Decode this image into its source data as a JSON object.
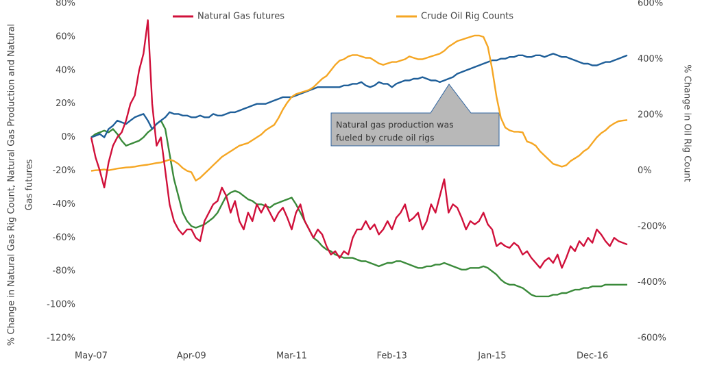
{
  "chart_data": {
    "type": "line",
    "ylabel": [
      "% Change in Natural Gas Rig Count, Natural Gas Production and Natural",
      "Gas futures"
    ],
    "y2label": "% Change in Oil Rig Count",
    "annotation": [
      "Natural gas production was",
      "fueled by crude oil rigs"
    ],
    "categories": [
      "May-07",
      null,
      null,
      null,
      null,
      null,
      null,
      null,
      null,
      null,
      null,
      null,
      null,
      null,
      null,
      null,
      null,
      null,
      null,
      null,
      null,
      null,
      null,
      "Apr-09",
      null,
      null,
      null,
      null,
      null,
      null,
      null,
      null,
      null,
      null,
      null,
      null,
      null,
      null,
      null,
      null,
      null,
      null,
      null,
      null,
      null,
      null,
      "Mar-11",
      null,
      null,
      null,
      null,
      null,
      null,
      null,
      null,
      null,
      null,
      null,
      null,
      null,
      null,
      null,
      null,
      null,
      null,
      null,
      null,
      null,
      null,
      "Feb-13",
      null,
      null,
      null,
      null,
      null,
      null,
      null,
      null,
      null,
      null,
      null,
      null,
      null,
      null,
      null,
      null,
      null,
      null,
      null,
      null,
      null,
      null,
      "Jan-15",
      null,
      null,
      null,
      null,
      null,
      null,
      null,
      null,
      null,
      null,
      null,
      null,
      null,
      null,
      null,
      null,
      null,
      null,
      null,
      null,
      null,
      null,
      "Dec-16",
      null,
      null,
      null,
      null,
      null,
      null,
      null,
      null
    ],
    "series": [
      {
        "name": "Natural Gas futures",
        "color": "#d0103a",
        "values": [
          0,
          -12,
          -20,
          -30,
          -15,
          -5,
          0,
          3,
          10,
          20,
          25,
          40,
          50,
          70,
          20,
          -5,
          0,
          -20,
          -40,
          -50,
          -55,
          -58,
          -55,
          -55,
          -60,
          -62,
          -50,
          -45,
          -40,
          -38,
          -30,
          -35,
          -45,
          -38,
          -50,
          -55,
          -45,
          -50,
          -40,
          -45,
          -40,
          -45,
          -50,
          -45,
          -42,
          -48,
          -55,
          -45,
          -40,
          -50,
          -55,
          -60,
          -55,
          -58,
          -65,
          -70,
          -68,
          -72,
          -68,
          -70,
          -60,
          -55,
          -55,
          -50,
          -55,
          -52,
          -58,
          -55,
          -50,
          -55,
          -48,
          -45,
          -40,
          -50,
          -48,
          -45,
          -55,
          -50,
          -40,
          -45,
          -35,
          -25,
          -45,
          -40,
          -42,
          -48,
          -55,
          -50,
          -52,
          -50,
          -45,
          -52,
          -55,
          -65,
          -63,
          -65,
          -66,
          -63,
          -65,
          -70,
          -68,
          -72,
          -75,
          -78,
          -74,
          -72,
          -75,
          -70,
          -78,
          -72,
          -65,
          -68,
          -62,
          -65,
          -60,
          -63,
          -55,
          -58,
          -62,
          -65,
          -60,
          -62,
          -63,
          -64
        ]
      },
      {
        "name": "Crude Oil Rig Counts",
        "color": "#f5a623",
        "axis": "y2",
        "values": [
          0,
          2,
          3,
          5,
          2,
          5,
          8,
          10,
          12,
          13,
          15,
          18,
          20,
          22,
          25,
          28,
          30,
          35,
          40,
          35,
          25,
          10,
          0,
          -5,
          -35,
          -25,
          -10,
          5,
          20,
          35,
          50,
          60,
          70,
          80,
          90,
          95,
          100,
          110,
          120,
          130,
          145,
          155,
          165,
          190,
          220,
          245,
          265,
          275,
          280,
          285,
          290,
          300,
          315,
          330,
          340,
          360,
          380,
          395,
          400,
          410,
          415,
          415,
          410,
          405,
          405,
          395,
          385,
          380,
          385,
          390,
          390,
          395,
          400,
          410,
          405,
          400,
          400,
          405,
          410,
          415,
          420,
          430,
          445,
          455,
          465,
          470,
          475,
          480,
          485,
          485,
          480,
          445,
          365,
          265,
          190,
          155,
          145,
          140,
          140,
          138,
          105,
          100,
          90,
          70,
          55,
          40,
          25,
          20,
          15,
          20,
          35,
          45,
          55,
          70,
          80,
          100,
          120,
          135,
          145,
          160,
          170,
          178,
          180,
          182
        ]
      },
      {
        "color": "#1f5f99",
        "values": [
          0,
          1,
          2,
          0,
          5,
          7,
          10,
          9,
          8,
          10,
          12,
          13,
          14,
          10,
          5,
          8,
          10,
          12,
          15,
          14,
          14,
          13,
          13,
          12,
          12,
          13,
          12,
          12,
          14,
          13,
          13,
          14,
          15,
          15,
          16,
          17,
          18,
          19,
          20,
          20,
          20,
          21,
          22,
          23,
          24,
          24,
          24,
          25,
          26,
          27,
          28,
          29,
          30,
          30,
          30,
          30,
          30,
          30,
          31,
          31,
          32,
          32,
          33,
          31,
          30,
          31,
          33,
          32,
          32,
          30,
          32,
          33,
          34,
          34,
          35,
          35,
          36,
          35,
          34,
          34,
          33,
          34,
          35,
          36,
          38,
          39,
          40,
          41,
          42,
          43,
          44,
          45,
          46,
          46,
          47,
          47,
          48,
          48,
          49,
          49,
          48,
          48,
          49,
          49,
          48,
          49,
          50,
          49,
          48,
          48,
          47,
          46,
          45,
          44,
          44,
          43,
          43,
          44,
          45,
          45,
          46,
          47,
          48,
          49
        ]
      },
      {
        "color": "#3a8a3a",
        "values": [
          0,
          2,
          3,
          4,
          3,
          5,
          2,
          -2,
          -5,
          -4,
          -3,
          -2,
          0,
          3,
          5,
          8,
          10,
          5,
          -10,
          -25,
          -35,
          -45,
          -50,
          -53,
          -54,
          -53,
          -52,
          -50,
          -48,
          -45,
          -40,
          -35,
          -33,
          -32,
          -33,
          -35,
          -37,
          -38,
          -40,
          -40,
          -41,
          -42,
          -40,
          -39,
          -38,
          -37,
          -36,
          -40,
          -45,
          -50,
          -55,
          -60,
          -62,
          -65,
          -67,
          -68,
          -70,
          -71,
          -72,
          -72,
          -72,
          -73,
          -74,
          -74,
          -75,
          -76,
          -77,
          -76,
          -75,
          -75,
          -74,
          -74,
          -75,
          -76,
          -77,
          -78,
          -78,
          -77,
          -77,
          -76,
          -76,
          -75,
          -76,
          -77,
          -78,
          -79,
          -79,
          -78,
          -78,
          -78,
          -77,
          -78,
          -80,
          -82,
          -85,
          -87,
          -88,
          -88,
          -89,
          -90,
          -92,
          -94,
          -95,
          -95,
          -95,
          -95,
          -94,
          -94,
          -93,
          -93,
          -92,
          -91,
          -91,
          -90,
          -90,
          -89,
          -89,
          -89,
          -88,
          -88,
          -88,
          -88,
          -88,
          -88
        ]
      }
    ],
    "ylim": [
      -120,
      80
    ],
    "yticks": [
      {
        "value": -120,
        "label": "-120%"
      },
      {
        "value": -100,
        "label": "-100%"
      },
      {
        "value": -80,
        "label": "-80%"
      },
      {
        "value": -60,
        "label": "-60%"
      },
      {
        "value": -40,
        "label": "-40%"
      },
      {
        "value": -20,
        "label": "-20%"
      },
      {
        "value": 0,
        "label": "0%"
      },
      {
        "value": 20,
        "label": "20%"
      },
      {
        "value": 40,
        "label": "40%"
      },
      {
        "value": 60,
        "label": "60%"
      },
      {
        "value": 80,
        "label": "80%"
      }
    ],
    "y2lim": [
      -600,
      600
    ],
    "y2ticks": [
      {
        "value": -600,
        "label": "-600%"
      },
      {
        "value": -400,
        "label": "-400%"
      },
      {
        "value": -200,
        "label": "-200%"
      },
      {
        "value": 0,
        "label": "0%"
      },
      {
        "value": 200,
        "label": "200%"
      },
      {
        "value": 400,
        "label": "400%"
      },
      {
        "value": 600,
        "label": "600%"
      }
    ],
    "legend": "top"
  }
}
